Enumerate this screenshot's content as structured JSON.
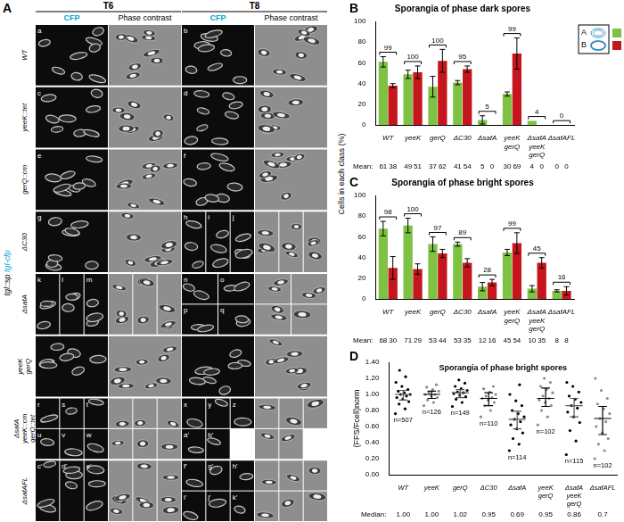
{
  "panel_A": {
    "letter": "A",
    "times": [
      "T6",
      "T8"
    ],
    "channels": [
      "CFP",
      "Phase contrast"
    ],
    "group_label": [
      "tgl::sp",
      "tgl-cfp"
    ],
    "rows": [
      {
        "label": "WT",
        "T6": [
          "a"
        ],
        "T8": [
          "b"
        ]
      },
      {
        "label": "yeeK::tet",
        "T6": [
          "c"
        ],
        "T8": [
          "d"
        ]
      },
      {
        "label": "gerQ::cm",
        "T6": [
          "e"
        ],
        "T8": [
          "f"
        ]
      },
      {
        "label": "ΔC30",
        "T6": [
          "g"
        ],
        "T8": [
          "h",
          "i",
          "j"
        ]
      },
      {
        "label": "ΔsafA",
        "T6": [
          "k",
          "l",
          "m"
        ],
        "T8": [
          "n",
          "o",
          "p",
          "q"
        ]
      },
      {
        "label": "yeeK gerQ",
        "T6": [],
        "T8": []
      },
      {
        "label": "ΔsafA yeeK::cm gerQ::tet",
        "T6": [
          "r",
          "s",
          "t",
          "u",
          "v",
          "w"
        ],
        "T8": [
          "x",
          "y",
          "z",
          "a'",
          "b'"
        ]
      },
      {
        "label": "ΔsafAFL",
        "T6": [
          "c'",
          "d'",
          "e'"
        ],
        "T8": [
          "f'",
          "g'",
          "h'",
          "i'",
          "j'",
          "k'"
        ]
      }
    ]
  },
  "y_label_BC": "Cells in each class (%)",
  "chart_data": [
    {
      "panel": "B",
      "type": "bar",
      "title": "Sporangia of phase dark spores",
      "categories": [
        "WT",
        "yeeK",
        "gerQ",
        "ΔC30",
        "ΔsafA",
        "yeeK gerQ",
        "ΔsafA yeeK gerQ",
        "ΔsafAFL"
      ],
      "series": [
        {
          "name": "A",
          "color": "#7dc243",
          "values": [
            61,
            49,
            37,
            41,
            5,
            30,
            4,
            0
          ],
          "errors": [
            5,
            4,
            10,
            2,
            4,
            2,
            0,
            0
          ]
        },
        {
          "name": "B",
          "color": "#c4161c",
          "values": [
            38,
            51,
            62,
            54,
            0,
            69,
            0,
            0
          ],
          "errors": [
            2,
            6,
            11,
            3,
            0,
            15,
            0,
            0
          ]
        }
      ],
      "totals": [
        99,
        100,
        100,
        95,
        5,
        99,
        4,
        0
      ],
      "mean_label": "Mean:",
      "ylim": [
        0,
        100
      ],
      "yticks": [
        0,
        20,
        40,
        60,
        80,
        100
      ],
      "grid": false,
      "legend": "right"
    },
    {
      "panel": "C",
      "type": "bar",
      "title": "Sporangia of phase bright spores",
      "categories": [
        "WT",
        "yeeK",
        "gerQ",
        "ΔC30",
        "ΔsafA",
        "yeeK gerQ",
        "ΔsafA yeeK gerQ",
        "ΔsafAFL"
      ],
      "series": [
        {
          "name": "A",
          "color": "#7dc243",
          "values": [
            68,
            71,
            53,
            53,
            12,
            45,
            10,
            8
          ],
          "errors": [
            7,
            7,
            7,
            2,
            4,
            3,
            3,
            1
          ]
        },
        {
          "name": "B",
          "color": "#c4161c",
          "values": [
            30,
            29,
            44,
            35,
            16,
            54,
            35,
            8
          ],
          "errors": [
            11,
            5,
            4,
            4,
            3,
            10,
            5,
            4
          ]
        }
      ],
      "totals": [
        98,
        100,
        97,
        89,
        28,
        99,
        45,
        16
      ],
      "mean_label": "Mean:",
      "ylim": [
        0,
        100
      ],
      "yticks": [
        0,
        20,
        40,
        60,
        80,
        100
      ],
      "grid": false
    },
    {
      "panel": "D",
      "type": "scatter",
      "title": "Sporangia of phase bright spores",
      "y_label": "(FFS/Fcell)norm",
      "categories": [
        "WT",
        "yeeK",
        "gerQ",
        "ΔC30",
        "ΔsafA",
        "yeeK gerQ",
        "ΔsafA yeeK gerQ",
        "ΔsafAFL"
      ],
      "colors": [
        "#000000",
        "#8c8c8c",
        "#000000",
        "#8c8c8c",
        "#000000",
        "#8c8c8c",
        "#000000",
        "#8c8c8c"
      ],
      "points": [
        [
          0.76,
          0.82,
          0.88,
          0.91,
          0.94,
          0.96,
          0.98,
          1.0,
          1.0,
          1.02,
          1.04,
          1.06,
          1.1,
          1.15,
          1.22,
          1.3
        ],
        [
          0.86,
          0.9,
          0.93,
          0.96,
          0.98,
          1.0,
          1.0,
          1.02,
          1.04,
          1.06,
          1.09,
          1.12
        ],
        [
          0.85,
          0.9,
          0.94,
          0.97,
          0.99,
          1.01,
          1.02,
          1.03,
          1.05,
          1.07,
          1.1,
          1.14,
          1.18
        ],
        [
          0.72,
          0.8,
          0.86,
          0.9,
          0.93,
          0.95,
          0.96,
          0.98,
          1.0,
          1.03,
          1.07,
          1.1
        ],
        [
          0.3,
          0.38,
          0.45,
          0.52,
          0.57,
          0.62,
          0.66,
          0.69,
          0.72,
          0.76,
          0.8,
          0.86,
          0.92,
          1.0,
          1.12
        ],
        [
          0.62,
          0.72,
          0.8,
          0.86,
          0.9,
          0.93,
          0.95,
          0.98,
          1.02,
          1.06,
          1.1,
          1.15,
          1.2
        ],
        [
          0.25,
          0.42,
          0.55,
          0.65,
          0.72,
          0.78,
          0.83,
          0.86,
          0.9,
          0.94,
          0.98,
          1.03,
          1.1,
          1.15
        ],
        [
          0.2,
          0.3,
          0.38,
          0.45,
          0.52,
          0.6,
          0.66,
          0.7,
          0.76,
          0.82,
          0.88,
          0.95,
          1.05,
          1.2
        ]
      ],
      "medians": [
        1.0,
        1.0,
        1.02,
        0.95,
        0.69,
        0.95,
        0.86,
        0.7
      ],
      "median_labels": [
        "1.00",
        "1.00",
        "1.02",
        "0.95",
        "0.69",
        "0.95",
        "0.86",
        "0.7"
      ],
      "iqr": [
        [
          0.93,
          1.05
        ],
        [
          0.95,
          1.04
        ],
        [
          0.96,
          1.06
        ],
        [
          0.86,
          1.02
        ],
        [
          0.57,
          0.79
        ],
        [
          0.85,
          1.08
        ],
        [
          0.72,
          0.95
        ],
        [
          0.5,
          0.85
        ]
      ],
      "n": [
        507,
        126,
        149,
        110,
        114,
        102,
        115,
        102
      ],
      "n_prefix": "n=",
      "median_label": "Median:",
      "ylim": [
        0,
        1.4
      ],
      "yticks": [
        {
          "value": 0,
          "label": "0.00"
        },
        {
          "value": 0.2,
          "label": "0.20"
        },
        {
          "value": 0.4,
          "label": "0.40"
        },
        {
          "value": 0.6,
          "label": "0.60"
        },
        {
          "value": 0.8,
          "label": "0.80"
        },
        {
          "value": 1.0,
          "label": "1.00"
        },
        {
          "value": 1.2,
          "label": "1.20"
        },
        {
          "value": 1.4,
          "label": "1.40"
        }
      ],
      "grid": false
    }
  ]
}
